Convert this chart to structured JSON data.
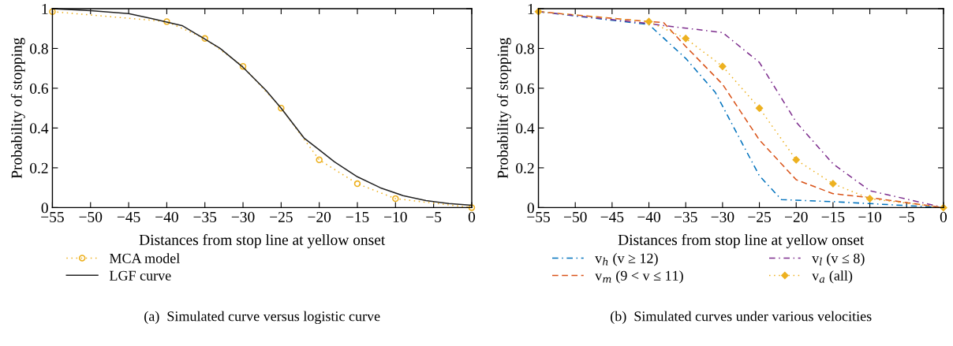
{
  "chart_data": [
    {
      "type": "line",
      "xlabel": "Distances from stop line at yellow onset",
      "ylabel": "Probability of stopping",
      "xlim": [
        -55,
        0
      ],
      "ylim": [
        0,
        1
      ],
      "xticks": [
        {
          "value": -55,
          "label": "−55"
        },
        {
          "value": -50,
          "label": "−50"
        },
        {
          "value": -45,
          "label": "−45"
        },
        {
          "value": -40,
          "label": "−40"
        },
        {
          "value": -35,
          "label": "−35"
        },
        {
          "value": -30,
          "label": "−30"
        },
        {
          "value": -25,
          "label": "−25"
        },
        {
          "value": -20,
          "label": "−20"
        },
        {
          "value": -15,
          "label": "−15"
        },
        {
          "value": -10,
          "label": "−10"
        },
        {
          "value": -5,
          "label": "−5"
        },
        0
      ],
      "yticks": [
        0,
        0.2,
        0.4,
        0.6,
        0.8,
        1
      ],
      "grid": false,
      "legend": "bottom",
      "annotations": [
        "(a)  Simulated curve versus logistic curve"
      ],
      "series": [
        {
          "name": "MCA model",
          "color": "#edb120",
          "marker": "circle",
          "line_style": "dotted",
          "x": [
            -55,
            -40,
            -35,
            -30,
            -25,
            -20,
            -15,
            -10,
            0
          ],
          "values": [
            0.985,
            0.935,
            0.85,
            0.71,
            0.5,
            0.24,
            0.12,
            0.045,
            0
          ]
        },
        {
          "name": "LGF curve",
          "color": "#222222",
          "marker": "none",
          "line_style": "solid",
          "x": [
            -55,
            -50,
            -45,
            -42,
            -38,
            -36,
            -33,
            -30,
            -27,
            -25,
            -22,
            -20,
            -18,
            -15,
            -12,
            -9,
            -6,
            -3,
            0
          ],
          "values": [
            1.0,
            0.99,
            0.975,
            0.95,
            0.915,
            0.87,
            0.8,
            0.705,
            0.59,
            0.5,
            0.35,
            0.29,
            0.23,
            0.155,
            0.1,
            0.06,
            0.035,
            0.02,
            0.012
          ]
        }
      ]
    },
    {
      "type": "line",
      "xlabel": "Distances from stop line at yellow onset",
      "ylabel": "Probability of stopping",
      "xlim": [
        -55,
        0
      ],
      "ylim": [
        0,
        1
      ],
      "xticks": [
        {
          "value": -55,
          "label": "−55"
        },
        {
          "value": -50,
          "label": "−50"
        },
        {
          "value": -45,
          "label": "−45"
        },
        {
          "value": -40,
          "label": "−40"
        },
        {
          "value": -35,
          "label": "−35"
        },
        {
          "value": -30,
          "label": "−30"
        },
        {
          "value": -25,
          "label": "−25"
        },
        {
          "value": -20,
          "label": "−20"
        },
        {
          "value": -15,
          "label": "−15"
        },
        {
          "value": -10,
          "label": "−10"
        },
        {
          "value": -5,
          "label": "−5"
        },
        0
      ],
      "yticks": [
        0,
        0.2,
        0.4,
        0.6,
        0.8,
        1
      ],
      "grid": false,
      "legend": "bottom",
      "annotations": [
        "(b)  Simulated curves under various velocities"
      ],
      "series": [
        {
          "name": "v$_{h}$ (v ≥ 12)",
          "color": "#0072bd",
          "marker": "none",
          "line_style": "dashdot",
          "x": [
            -55,
            -40,
            -35,
            -31,
            -25,
            -22,
            -15,
            -10,
            0
          ],
          "values": [
            0.985,
            0.92,
            0.75,
            0.58,
            0.16,
            0.04,
            0.03,
            0.02,
            0
          ]
        },
        {
          "name": "v$_{m}$ (9 < v ≤ 11)",
          "color": "#d95319",
          "marker": "none",
          "line_style": "dashed",
          "x": [
            -55,
            -40,
            -38,
            -35,
            -30,
            -25,
            -20,
            -15,
            -10,
            0
          ],
          "values": [
            0.985,
            0.935,
            0.93,
            0.81,
            0.62,
            0.34,
            0.14,
            0.07,
            0.05,
            0
          ]
        },
        {
          "name": "v$_{l}$ (v ≤ 8)",
          "color": "#7e2f8e",
          "marker": "none",
          "line_style": "dashdot",
          "x": [
            -55,
            -40,
            -38,
            -30,
            -25,
            -20,
            -15,
            -10,
            0
          ],
          "values": [
            0.985,
            0.925,
            0.915,
            0.88,
            0.73,
            0.43,
            0.22,
            0.085,
            0
          ]
        },
        {
          "name": "v$_{a}$ (all)",
          "color": "#edb120",
          "marker": "diamond",
          "line_style": "dotted",
          "x": [
            -55,
            -40,
            -35,
            -30,
            -25,
            -20,
            -15,
            -10,
            0
          ],
          "values": [
            0.985,
            0.935,
            0.85,
            0.71,
            0.5,
            0.24,
            0.12,
            0.045,
            0
          ]
        }
      ]
    }
  ]
}
